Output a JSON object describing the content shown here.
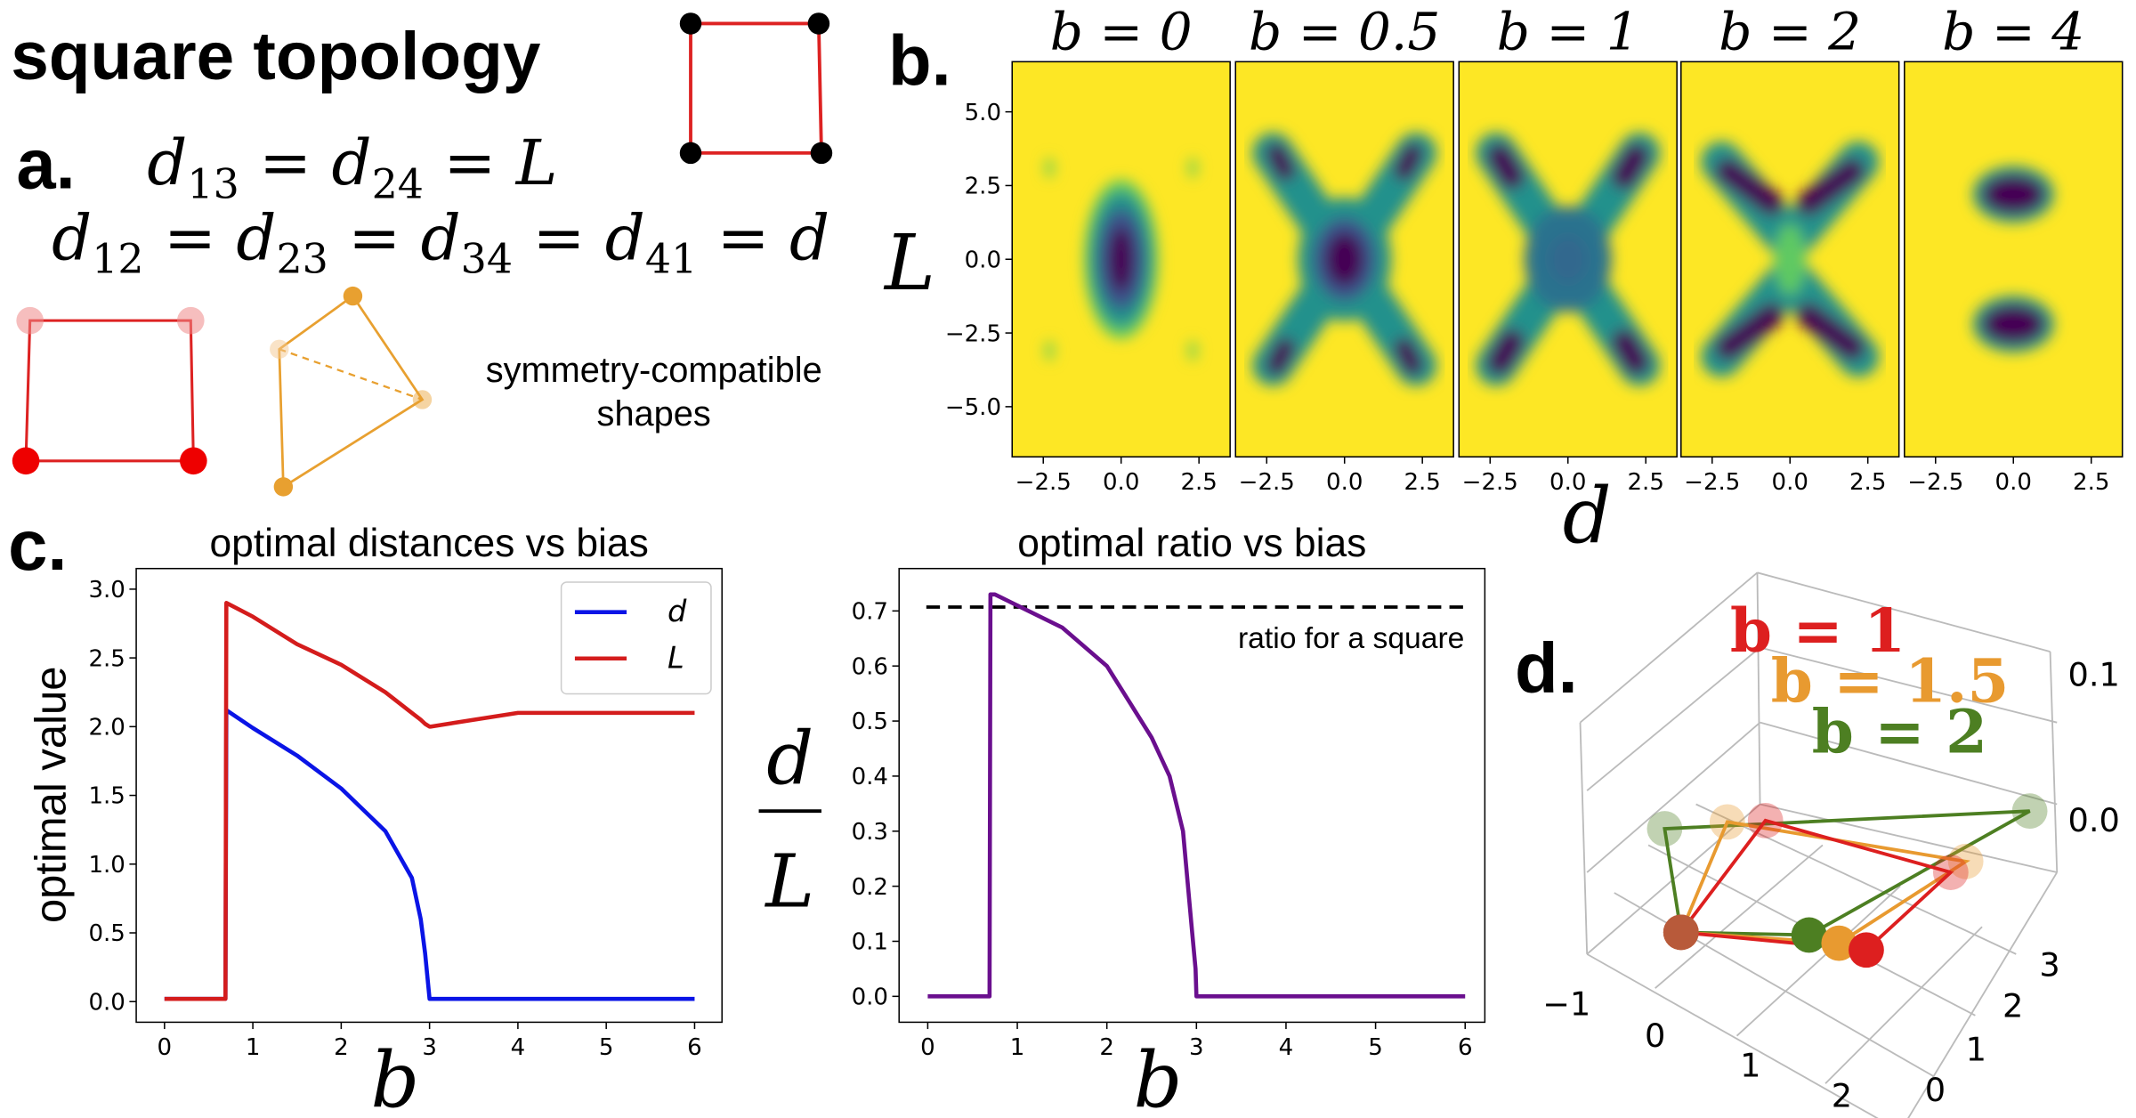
{
  "header": {
    "title": "square topology"
  },
  "panel_labels": [
    "a.",
    "b.",
    "c.",
    "d."
  ],
  "panel_a": {
    "equations": [
      [
        {
          "text": "d"
        },
        {
          "sub": "13"
        },
        {
          "text": " = d"
        },
        {
          "sub": "24"
        },
        {
          "text": " = L"
        }
      ],
      [
        {
          "text": "d"
        },
        {
          "sub": "12"
        },
        {
          "text": " = d"
        },
        {
          "sub": "23"
        },
        {
          "text": " = d"
        },
        {
          "sub": "34"
        },
        {
          "text": " = d"
        },
        {
          "sub": "41"
        },
        {
          "text": " = d"
        }
      ]
    ],
    "shapes_caption": [
      "symmetry-compatible",
      "shapes"
    ]
  },
  "panel_b": {
    "type": "heatmap",
    "titles": [
      "b = 0",
      "b = 0.5",
      "b = 1",
      "b = 2",
      "b = 4"
    ],
    "xlabel": "d",
    "ylabel": "L",
    "xlim": [
      -3.5,
      3.5
    ],
    "ylim": [
      -6.7,
      6.7
    ],
    "xticks": [
      {
        "value": -2.5,
        "label": "−2.5"
      },
      {
        "value": 0,
        "label": "0.0"
      },
      {
        "value": 2.5,
        "label": "2.5"
      }
    ],
    "yticks": [
      {
        "value": -5,
        "label": "−5.0"
      },
      {
        "value": -2.5,
        "label": "−2.5"
      },
      {
        "value": 0,
        "label": "0.0"
      },
      {
        "value": 2.5,
        "label": "2.5"
      },
      {
        "value": 5,
        "label": "5.0"
      }
    ]
  },
  "chart_data": [
    {
      "type": "line",
      "title": "optimal distances vs bias",
      "xlabel": "b",
      "ylabel": "optimal value",
      "x": [
        0,
        0.69,
        0.7,
        1,
        1.5,
        2,
        2.5,
        2.8,
        2.9,
        2.95,
        3,
        3.01,
        3.5,
        4,
        5,
        6
      ],
      "series": [
        {
          "name": "d",
          "color": "#0a14e6",
          "values": [
            0.02,
            0.02,
            2.12,
            1.99,
            1.79,
            1.55,
            1.24,
            0.9,
            0.6,
            0.35,
            0.02,
            0.02,
            0.02,
            0.02,
            0.02,
            0.02
          ]
        },
        {
          "name": "L",
          "color": "#d41c1c",
          "values": [
            0.02,
            0.02,
            2.9,
            2.8,
            2.6,
            2.45,
            2.25,
            2.1,
            2.05,
            2.02,
            2.0,
            2.0,
            2.05,
            2.1,
            2.1,
            2.1
          ]
        }
      ],
      "xlim": [
        -0.32,
        6.31
      ],
      "ylim": [
        -0.15,
        3.15
      ],
      "xticks": [
        0,
        1,
        2,
        3,
        4,
        5,
        6
      ],
      "yticks": [
        {
          "value": 0,
          "label": "0.0"
        },
        {
          "value": 0.5,
          "label": "0.5"
        },
        {
          "value": 1,
          "label": "1.0"
        },
        {
          "value": 1.5,
          "label": "1.5"
        },
        {
          "value": 2,
          "label": "2.0"
        },
        {
          "value": 2.5,
          "label": "2.5"
        },
        {
          "value": 3,
          "label": "3.0"
        }
      ],
      "legend": "upper right"
    },
    {
      "type": "line",
      "title": "optimal ratio vs bias",
      "xlabel": "b",
      "ylabel": {
        "numerator": "d",
        "denominator": "L"
      },
      "x": [
        0,
        0.69,
        0.7,
        0.75,
        1,
        1.5,
        2,
        2.5,
        2.7,
        2.85,
        2.95,
        2.99,
        3,
        6
      ],
      "series": [
        {
          "color": "#6a0f8e",
          "values": [
            0,
            0,
            0.73,
            0.73,
            0.71,
            0.67,
            0.6,
            0.47,
            0.4,
            0.3,
            0.12,
            0.05,
            0,
            0
          ]
        }
      ],
      "hlines": [
        {
          "value": 0.707,
          "label": "ratio for a square",
          "color": "#000000",
          "style": "dashed"
        }
      ],
      "xlim": [
        -0.32,
        6.22
      ],
      "ylim": [
        -0.047,
        0.777
      ],
      "xticks": [
        0,
        1,
        2,
        3,
        4,
        5,
        6
      ],
      "yticks": [
        {
          "value": 0,
          "label": "0.0"
        },
        {
          "value": 0.1,
          "label": "0.1"
        },
        {
          "value": 0.2,
          "label": "0.2"
        },
        {
          "value": 0.3,
          "label": "0.3"
        },
        {
          "value": 0.4,
          "label": "0.4"
        },
        {
          "value": 0.5,
          "label": "0.5"
        },
        {
          "value": 0.6,
          "label": "0.6"
        },
        {
          "value": 0.7,
          "label": "0.7"
        }
      ]
    }
  ],
  "panel_d": {
    "annotations": [
      {
        "text": "b = 1",
        "color": "#dd1f1f"
      },
      {
        "text": "b = 1.5",
        "color": "#e89a30"
      },
      {
        "text": "b = 2",
        "color": "#4d7f22"
      }
    ],
    "x_tick_labels": [
      "−1",
      "0",
      "1",
      "2"
    ],
    "y_tick_labels": [
      "0",
      "1",
      "2",
      "3"
    ],
    "z_tick_labels": [
      "0.0",
      "0.1"
    ]
  }
}
